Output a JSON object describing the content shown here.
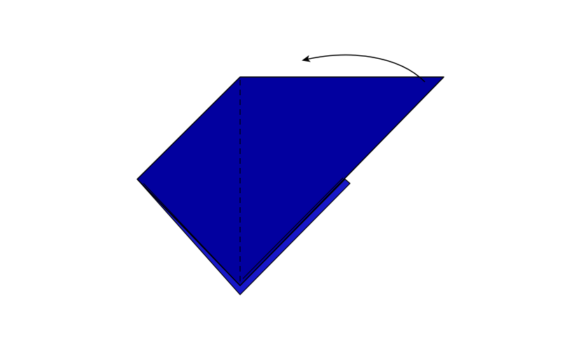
{
  "diagram": {
    "kind": "origami-step",
    "colors": {
      "paper_front": "#02009f",
      "paper_back_layer": "#1818c8",
      "outline": "#000000",
      "background": "#ffffff"
    },
    "fold_line_style": "valley-fold-dashed",
    "arrow_direction": "fold-left"
  }
}
